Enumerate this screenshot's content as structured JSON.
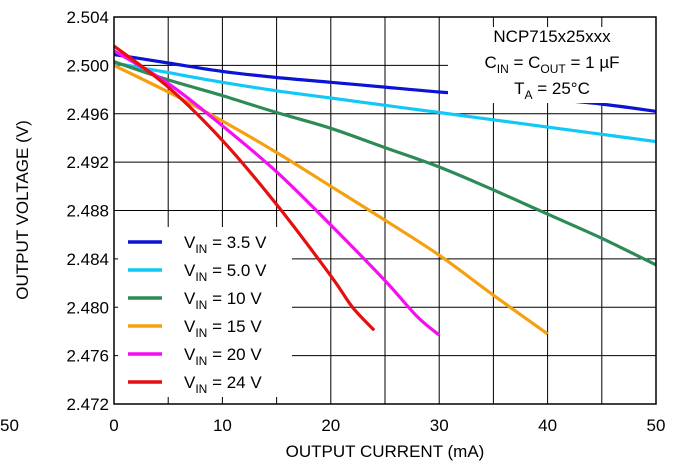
{
  "chart_data": {
    "type": "line",
    "xlabel": "OUTPUT CURRENT (mA)",
    "ylabel": "OUTPUT VOLTAGE (V)",
    "xlim": [
      0,
      50
    ],
    "ylim": [
      2.472,
      2.504
    ],
    "x_ticks": [
      "0",
      "10",
      "20",
      "30",
      "40",
      "50"
    ],
    "y_ticks": [
      "2.472",
      "2.476",
      "2.480",
      "2.484",
      "2.488",
      "2.492",
      "2.496",
      "2.500",
      "2.504"
    ],
    "stray_tick": "50",
    "grid": true,
    "annotation": {
      "part": "NCP715x25xxx",
      "cap_prefix": "C",
      "cap_in_sub": "IN",
      "cap_eq": " = C",
      "cap_out_sub": "OUT",
      "cap_value": " = 1 µF",
      "temp_prefix": "T",
      "temp_sub": "A",
      "temp_value": " = 25°C"
    },
    "legend_position": "bottom-left",
    "series": [
      {
        "name_prefix": "V",
        "name_sub": "IN",
        "name_value": " = 3.5 V",
        "color": "#0a14d2",
        "x": [
          0,
          5,
          10,
          15,
          20,
          25,
          30,
          35,
          40,
          45,
          50
        ],
        "y": [
          2.5009,
          2.5002,
          2.4995,
          2.499,
          2.4986,
          2.4982,
          2.4978,
          2.4975,
          2.4972,
          2.4968,
          2.4962
        ]
      },
      {
        "name_prefix": "V",
        "name_sub": "IN",
        "name_value": " = 5.0 V",
        "color": "#12c8f5",
        "x": [
          0,
          5,
          10,
          15,
          20,
          25,
          30,
          35,
          40,
          45,
          50
        ],
        "y": [
          2.5002,
          2.4994,
          2.4986,
          2.4979,
          2.4973,
          2.4967,
          2.4961,
          2.4955,
          2.4949,
          2.4943,
          2.4937
        ]
      },
      {
        "name_prefix": "V",
        "name_sub": "IN",
        "name_value": " = 10 V",
        "color": "#2e8b57",
        "x": [
          0,
          5,
          10,
          15,
          20,
          25,
          30,
          35,
          40,
          45,
          50
        ],
        "y": [
          2.5003,
          2.4988,
          2.4975,
          2.4961,
          2.4948,
          2.4932,
          2.4916,
          2.4897,
          2.4877,
          2.4857,
          2.4835
        ]
      },
      {
        "name_prefix": "V",
        "name_sub": "IN",
        "name_value": " = 15 V",
        "color": "#f5a00f",
        "x": [
          0,
          5,
          10,
          15,
          20,
          25,
          30,
          35,
          40
        ],
        "y": [
          2.5,
          2.4978,
          2.4954,
          2.4928,
          2.49,
          2.4872,
          2.4843,
          2.481,
          2.4778
        ]
      },
      {
        "name_prefix": "V",
        "name_sub": "IN",
        "name_value": " = 20 V",
        "color": "#f50ff0",
        "x": [
          0,
          5,
          10,
          15,
          20,
          25,
          28,
          30
        ],
        "y": [
          2.5012,
          2.4985,
          2.495,
          2.4912,
          2.4868,
          2.4822,
          2.4792,
          2.4777
        ]
      },
      {
        "name_prefix": "V",
        "name_sub": "IN",
        "name_value": " = 24 V",
        "color": "#e60f0f",
        "x": [
          0,
          5,
          10,
          15,
          20,
          22,
          24
        ],
        "y": [
          2.5016,
          2.4982,
          2.4938,
          2.4885,
          2.4826,
          2.48,
          2.4781
        ]
      }
    ]
  }
}
